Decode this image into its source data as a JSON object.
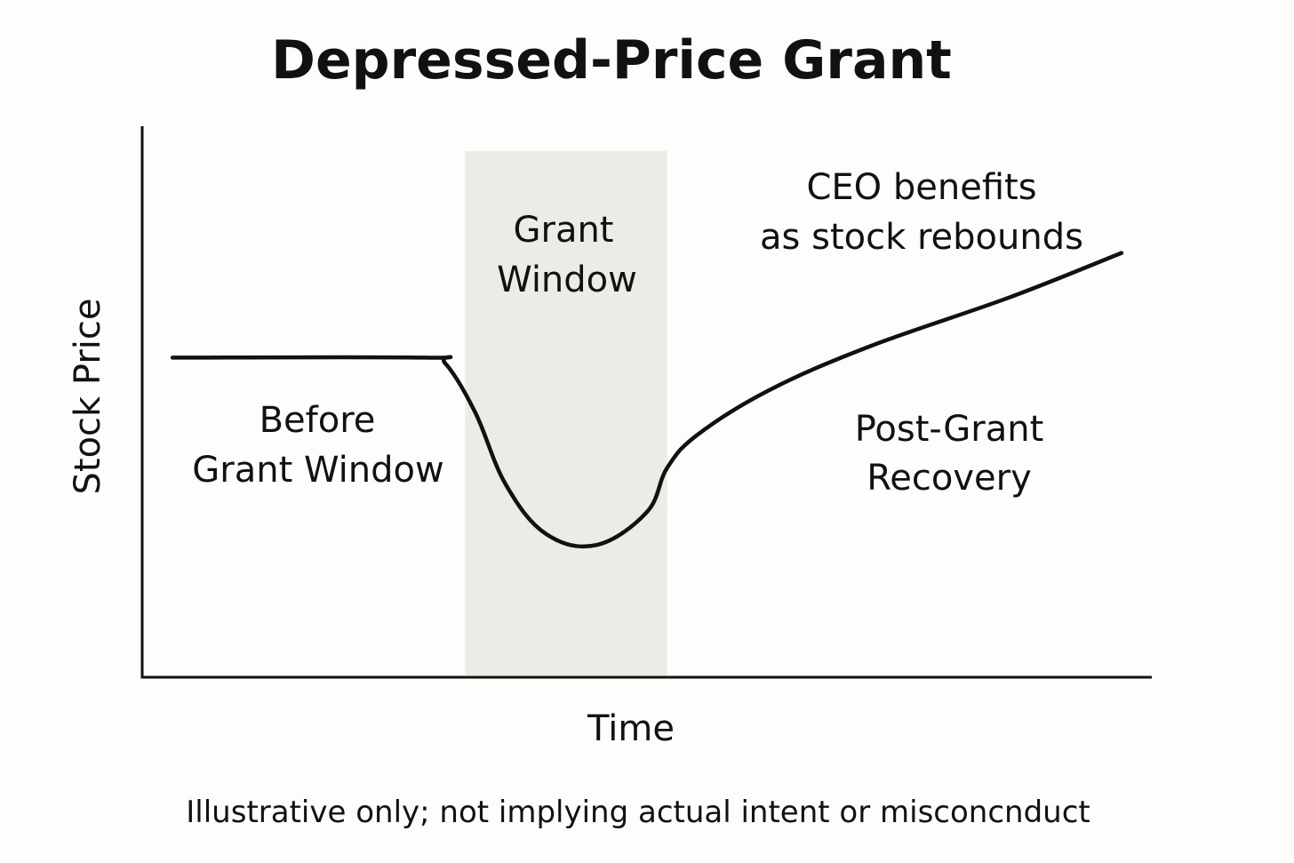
{
  "chart_data": {
    "type": "line",
    "title": "Depressed-Price Grant",
    "xlabel": "Time",
    "ylabel": "Stock Price",
    "xlim": [
      0,
      100
    ],
    "ylim": [
      0,
      100
    ],
    "grid": false,
    "ticks": false,
    "series": [
      {
        "name": "Stock Price",
        "x": [
          3,
          28,
          30,
          33,
          36,
          40,
          45,
          50,
          52,
          55,
          62,
          72,
          86,
          97
        ],
        "y": [
          58,
          58,
          57,
          48,
          35,
          26,
          24,
          30,
          38,
          44,
          52,
          60,
          69,
          77
        ]
      }
    ],
    "shaded_region": {
      "label_line1": "Grant",
      "label_line2": "Window",
      "x_start": 32,
      "x_end": 52
    },
    "annotations": {
      "before_line1": "Before",
      "before_line2": "Grant Window",
      "post_line1": "Post-Grant",
      "post_line2": "Recovery",
      "benefit_line1": "CEO benefits",
      "benefit_line2": "as stock rebounds"
    },
    "footnote": "Illustrative only; not implying actual intent or misconcnduct"
  },
  "colors": {
    "line": "#111111",
    "axis": "#111111",
    "shade": "#ecebe6",
    "text": "#111111"
  }
}
